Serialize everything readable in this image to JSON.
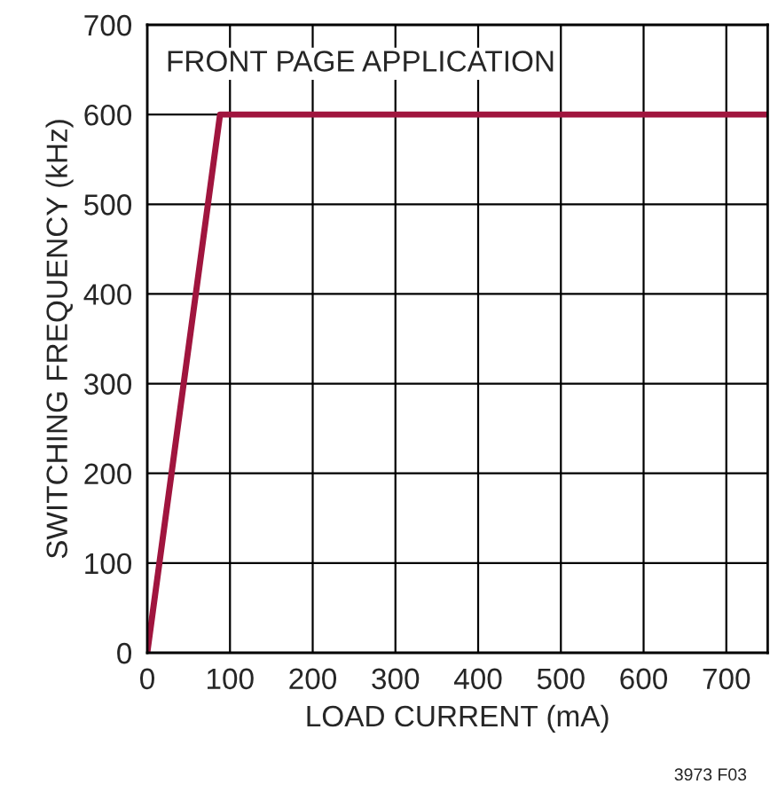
{
  "chart_data": {
    "type": "line",
    "xlabel": "LOAD CURRENT (mA)",
    "ylabel": "SWITCHING FREQUENCY (kHz)",
    "annotations": [
      "FRONT PAGE APPLICATION",
      "3973 F03"
    ],
    "series": [
      {
        "color": "#a0153e",
        "x": [
          0,
          88,
          750
        ],
        "values": [
          0,
          600,
          600
        ]
      }
    ],
    "xlim": [
      0,
      750
    ],
    "xticks": [
      0,
      100,
      200,
      300,
      400,
      500,
      600,
      700
    ],
    "ylim": [
      0,
      700
    ],
    "yticks": [
      0,
      100,
      200,
      300,
      400,
      500,
      600,
      700
    ],
    "grid": true,
    "legend": false,
    "marker": "none",
    "line_style": "solid"
  }
}
